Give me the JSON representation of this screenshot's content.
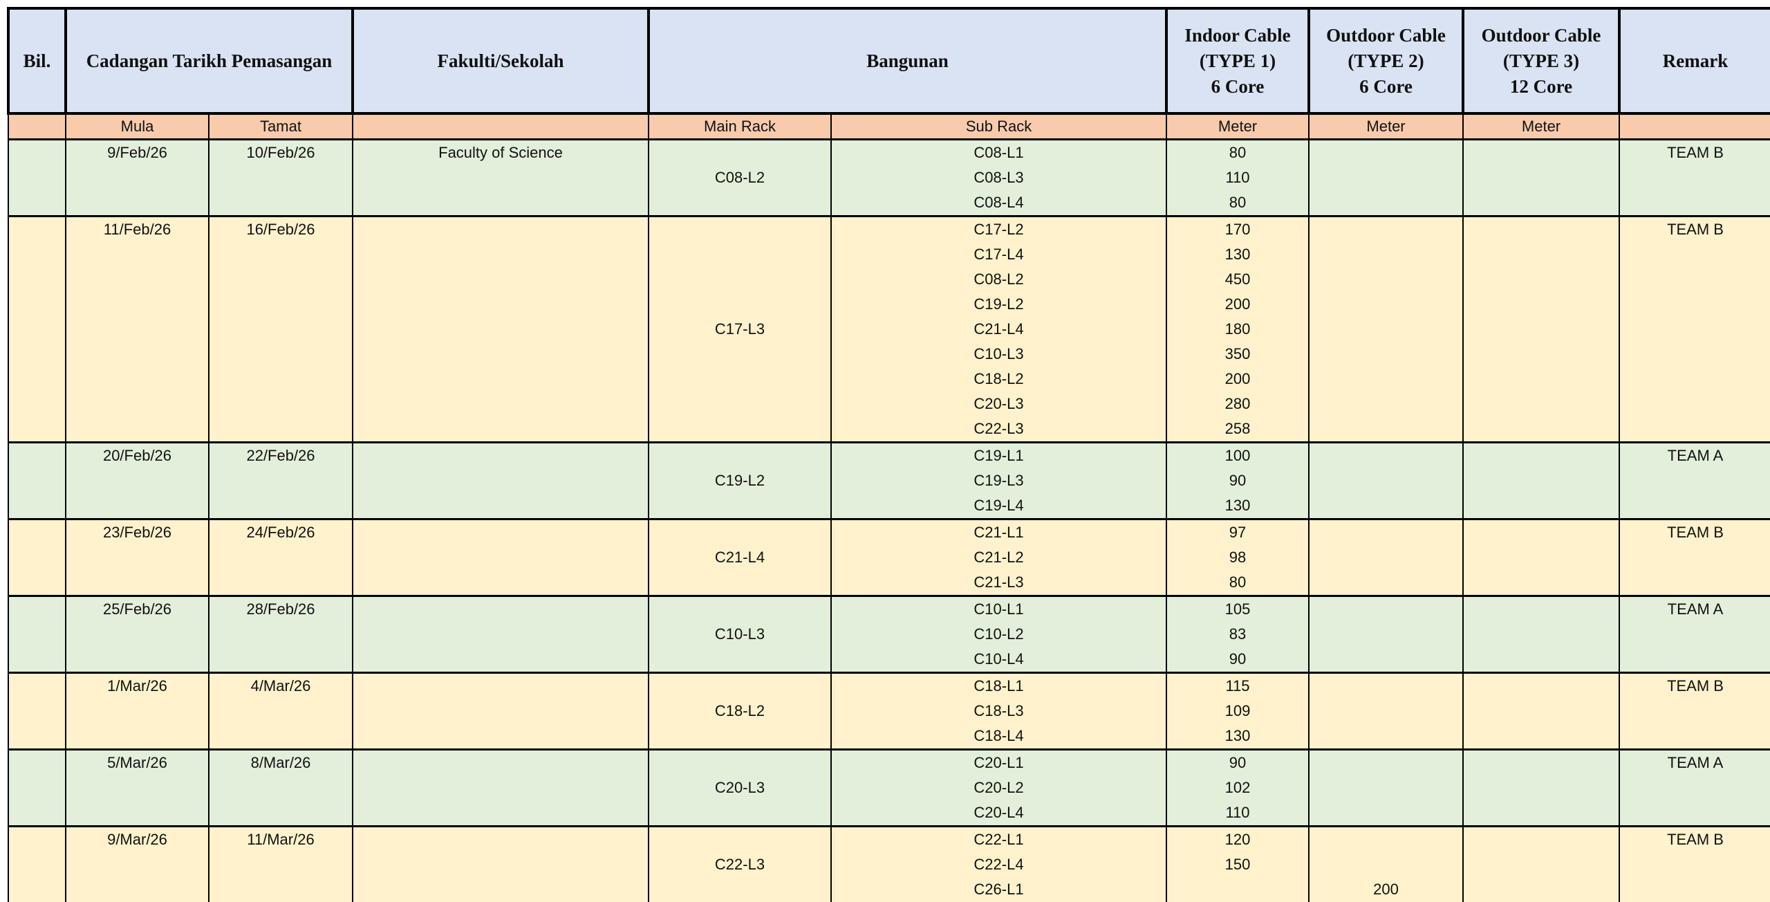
{
  "header": {
    "columns": [
      [
        "Bil."
      ],
      [
        "Cadangan Tarikh Pemasangan"
      ],
      [
        "Fakulti/Sekolah"
      ],
      [
        "Bangunan"
      ],
      [
        "Indoor Cable",
        "(TYPE 1)",
        "6 Core"
      ],
      [
        "Outdoor Cable",
        "(TYPE 2)",
        "6 Core"
      ],
      [
        "Outdoor Cable",
        "(TYPE 3)",
        "12 Core"
      ],
      [
        "Remark"
      ]
    ]
  },
  "subheader": [
    "Mula",
    "Tamat",
    "Main Rack",
    "Sub Rack",
    "Meter",
    "Meter",
    "Meter"
  ],
  "groups": [
    {
      "mula": "9/Feb/26",
      "tamat": "10/Feb/26",
      "fakulti": "Faculty of Science",
      "main_rack": "C08-L2",
      "remark": "TEAM B",
      "rows": [
        {
          "sub_rack": "C08-L1",
          "indoor": 80
        },
        {
          "sub_rack": "C08-L3",
          "indoor": 110
        },
        {
          "sub_rack": "C08-L4",
          "indoor": 80
        }
      ]
    },
    {
      "mula": "11/Feb/26",
      "tamat": "16/Feb/26",
      "main_rack": "C17-L3",
      "remark": "TEAM B",
      "rows": [
        {
          "sub_rack": "C17-L2",
          "indoor": 170
        },
        {
          "sub_rack": "C17-L4",
          "indoor": 130
        },
        {
          "sub_rack": "C08-L2",
          "indoor": 450
        },
        {
          "sub_rack": "C19-L2",
          "indoor": 200
        },
        {
          "sub_rack": "C21-L4",
          "indoor": 180
        },
        {
          "sub_rack": "C10-L3",
          "indoor": 350
        },
        {
          "sub_rack": "C18-L2",
          "indoor": 200
        },
        {
          "sub_rack": "C20-L3",
          "indoor": 280
        },
        {
          "sub_rack": "C22-L3",
          "indoor": 258
        }
      ]
    },
    {
      "mula": "20/Feb/26",
      "tamat": "22/Feb/26",
      "main_rack": "C19-L2",
      "remark": "TEAM A",
      "rows": [
        {
          "sub_rack": "C19-L1",
          "indoor": 100
        },
        {
          "sub_rack": "C19-L3",
          "indoor": 90
        },
        {
          "sub_rack": "C19-L4",
          "indoor": 130
        }
      ]
    },
    {
      "mula": "23/Feb/26",
      "tamat": "24/Feb/26",
      "main_rack": "C21-L4",
      "remark": "TEAM B",
      "rows": [
        {
          "sub_rack": "C21-L1",
          "indoor": 97
        },
        {
          "sub_rack": "C21-L2",
          "indoor": 98
        },
        {
          "sub_rack": "C21-L3",
          "indoor": 80
        }
      ]
    },
    {
      "mula": "25/Feb/26",
      "tamat": "28/Feb/26",
      "main_rack": "C10-L3",
      "remark": "TEAM A",
      "rows": [
        {
          "sub_rack": "C10-L1",
          "indoor": 105
        },
        {
          "sub_rack": "C10-L2",
          "indoor": 83
        },
        {
          "sub_rack": "C10-L4",
          "indoor": 90
        }
      ]
    },
    {
      "mula": "1/Mar/26",
      "tamat": "4/Mar/26",
      "main_rack": "C18-L2",
      "remark": "TEAM B",
      "rows": [
        {
          "sub_rack": "C18-L1",
          "indoor": 115
        },
        {
          "sub_rack": "C18-L3",
          "indoor": 109
        },
        {
          "sub_rack": "C18-L4",
          "indoor": 130
        }
      ]
    },
    {
      "mula": "5/Mar/26",
      "tamat": "8/Mar/26",
      "main_rack": "C20-L3",
      "remark": "TEAM A",
      "rows": [
        {
          "sub_rack": "C20-L1",
          "indoor": 90
        },
        {
          "sub_rack": "C20-L2",
          "indoor": 102
        },
        {
          "sub_rack": "C20-L4",
          "indoor": 110
        }
      ]
    },
    {
      "mula": "9/Mar/26",
      "tamat": "11/Mar/26",
      "main_rack": "C22-L3",
      "remark": "TEAM B",
      "rows": [
        {
          "sub_rack": "C22-L1",
          "indoor": 120
        },
        {
          "sub_rack": "C22-L4",
          "indoor": 150
        },
        {
          "sub_rack": "C26-L1",
          "outdoor_type2": 200
        }
      ]
    }
  ]
}
